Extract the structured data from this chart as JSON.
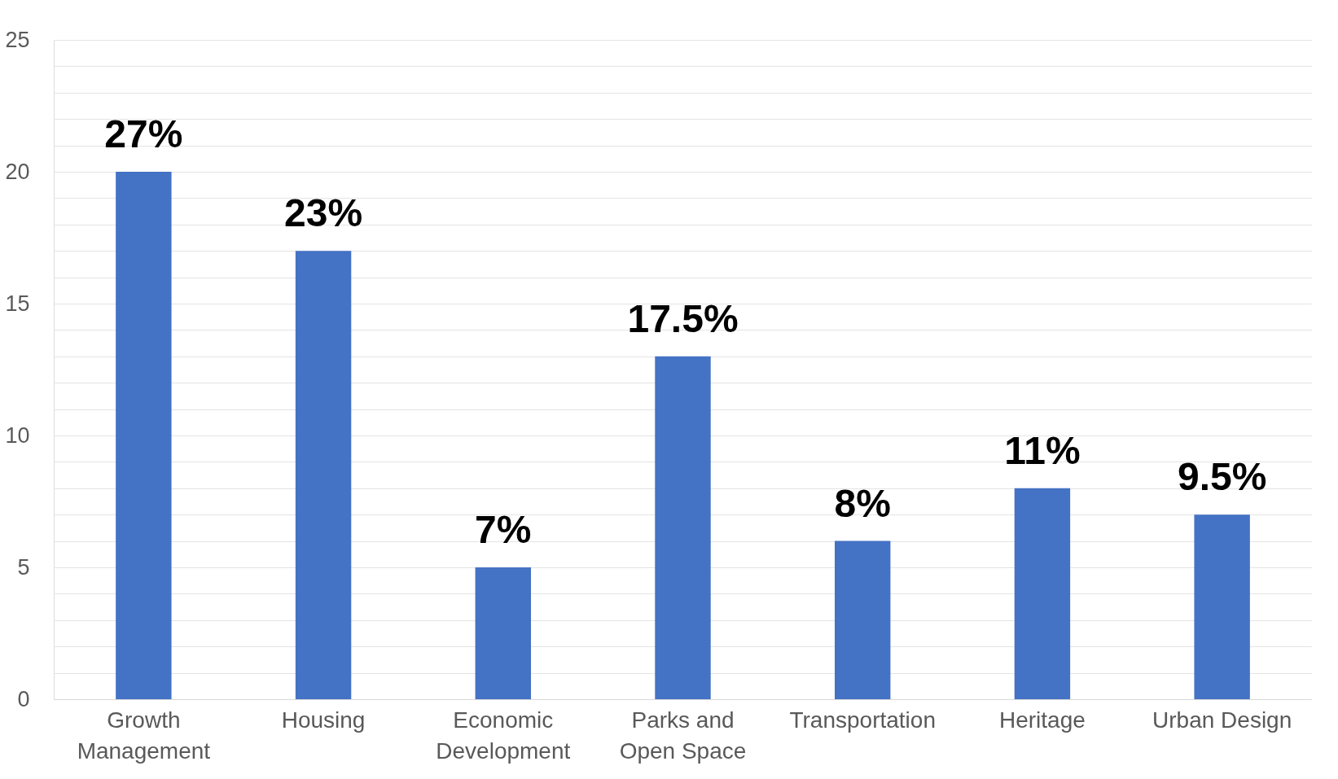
{
  "chart_data": {
    "type": "bar",
    "categories": [
      "Growth Management",
      "Housing",
      "Economic Development",
      "Parks and Open Space",
      "Transportation",
      "Heritage",
      "Urban Design"
    ],
    "values": [
      20,
      17,
      5,
      13,
      6,
      8,
      7
    ],
    "annotations": [
      {
        "text": "27%",
        "x": "Growth Management",
        "y": 20
      },
      {
        "text": "23%",
        "x": "Housing",
        "y": 17
      },
      {
        "text": "7%",
        "x": "Economic Development",
        "y": 5
      },
      {
        "text": "17.5%",
        "x": "Parks and Open Space",
        "y": 13
      },
      {
        "text": "8%",
        "x": "Transportation",
        "y": 6
      },
      {
        "text": "11%",
        "x": "Heritage",
        "y": 8
      },
      {
        "text": "9.5%",
        "x": "Urban Design",
        "y": 7
      }
    ],
    "color": "#4472c4",
    "ylim": [
      0,
      25
    ],
    "yticks": [
      0,
      {
        "value": 1,
        "label": null
      },
      {
        "value": 2,
        "label": null
      },
      {
        "value": 3,
        "label": null
      },
      {
        "value": 4,
        "label": null
      },
      5,
      {
        "value": 6,
        "label": null
      },
      {
        "value": 7,
        "label": null
      },
      {
        "value": 8,
        "label": null
      },
      {
        "value": 9,
        "label": null
      },
      10,
      {
        "value": 11,
        "label": null
      },
      {
        "value": 12,
        "label": null
      },
      {
        "value": 13,
        "label": null
      },
      {
        "value": 14,
        "label": null
      },
      15,
      {
        "value": 16,
        "label": null
      },
      {
        "value": 17,
        "label": null
      },
      {
        "value": 18,
        "label": null
      },
      {
        "value": 19,
        "label": null
      },
      20,
      {
        "value": 21,
        "label": null
      },
      {
        "value": 22,
        "label": null
      },
      {
        "value": 23,
        "label": null
      },
      {
        "value": 24,
        "label": null
      },
      25
    ],
    "grid": "y"
  }
}
